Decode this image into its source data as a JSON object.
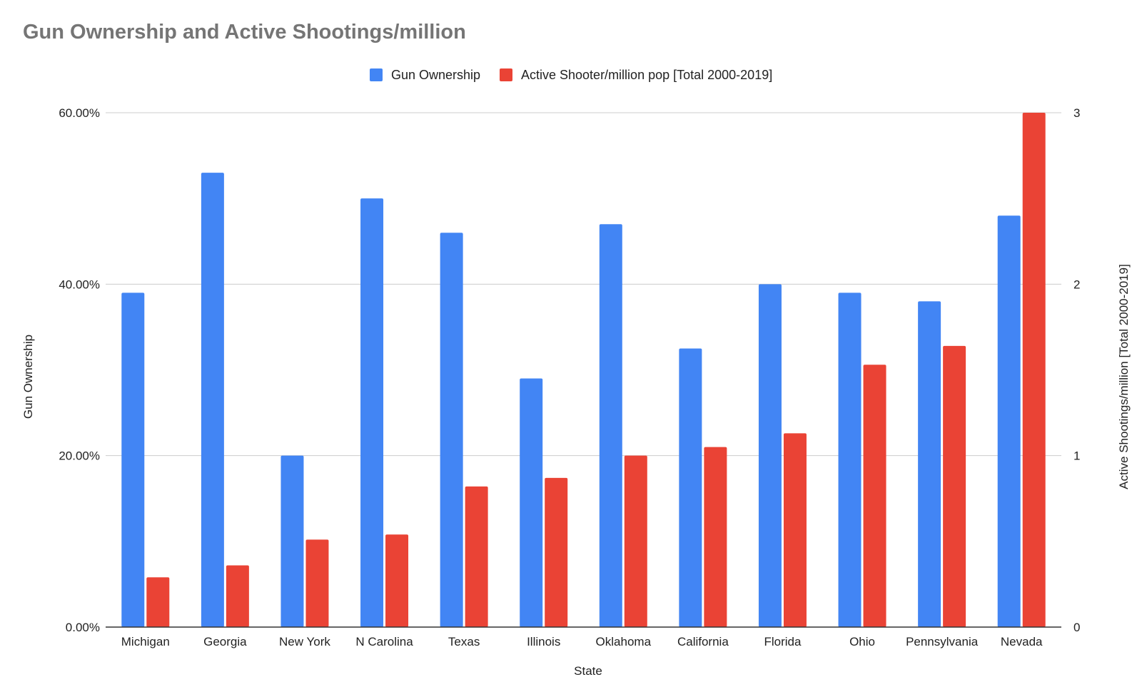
{
  "chart_data": {
    "type": "bar",
    "title": "Gun Ownership and Active Shootings/million",
    "xlabel": "State",
    "ylabel": "Gun Ownership",
    "y2label": "Active Shootings/million [Total 2000-2019]",
    "categories": [
      "Michigan",
      "Georgia",
      "New York",
      "N Carolina",
      "Texas",
      "Illinois",
      "Oklahoma",
      "California",
      "Florida",
      "Ohio",
      "Pennsylvania",
      "Nevada"
    ],
    "series": [
      {
        "name": "Gun Ownership",
        "axis": "left",
        "color": "#4285f4",
        "values": [
          0.39,
          0.53,
          0.2,
          0.5,
          0.46,
          0.29,
          0.47,
          0.325,
          0.4,
          0.39,
          0.38,
          0.48
        ]
      },
      {
        "name": "Active Shooter/million pop [Total 2000-2019]",
        "axis": "right",
        "color": "#ea4335",
        "values": [
          0.29,
          0.36,
          0.51,
          0.54,
          0.82,
          0.87,
          1.0,
          1.05,
          1.13,
          1.53,
          1.64,
          3.0
        ]
      }
    ],
    "ylim": [
      0,
      0.6
    ],
    "y2lim": [
      0,
      3
    ],
    "yticks": [
      "0.00%",
      "20.00%",
      "40.00%",
      "60.00%"
    ],
    "y2ticks": [
      "0",
      "1",
      "2",
      "3"
    ],
    "legend_position": "top-center",
    "grid": true
  }
}
